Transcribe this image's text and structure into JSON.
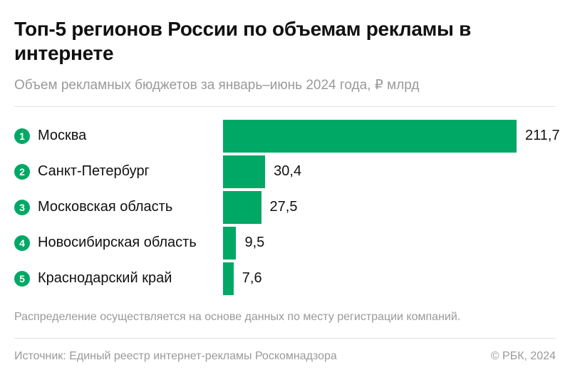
{
  "chart_data": {
    "type": "bar",
    "orientation": "horizontal",
    "title": "Топ-5 регионов России по объемам рекламы в интернете",
    "subtitle": "Объем рекламных бюджетов за январь–июнь 2024 года, ₽ млрд",
    "ranks": [
      "1",
      "2",
      "3",
      "4",
      "5"
    ],
    "categories": [
      "Москва",
      "Санкт-Петербург",
      "Московская область",
      "Новосибирская область",
      "Краснодарский край"
    ],
    "values": [
      211.7,
      30.4,
      27.5,
      9.5,
      7.6
    ],
    "value_labels": [
      "211,7",
      "30,4",
      "27,5",
      "9,5",
      "7,6"
    ],
    "grid": false,
    "bar_color": "#00a865"
  },
  "footer": {
    "note": "Распределение осуществляется на основе данных по месту регистрации компаний.",
    "source": "Источник: Единый реестр интернет-рекламы Роскомнадзора",
    "copyright": "© РБК, 2024"
  }
}
